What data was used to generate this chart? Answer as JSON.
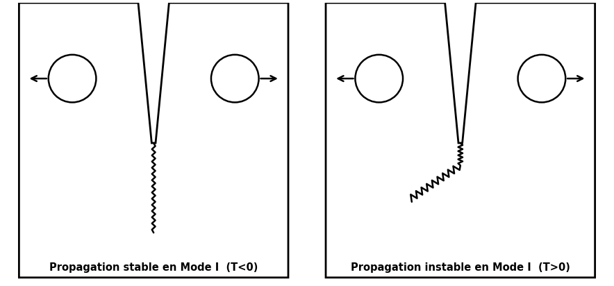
{
  "panel1_label": "Propagation stable en Mode I  (T<0)",
  "panel2_label": "Propagation instable en Mode I  (T>0)",
  "bg_color": "#ffffff",
  "line_color": "#000000",
  "label_fontsize": 10.5,
  "label_fontweight": "bold",
  "figsize": [
    8.84,
    4.12
  ],
  "dpi": 100
}
